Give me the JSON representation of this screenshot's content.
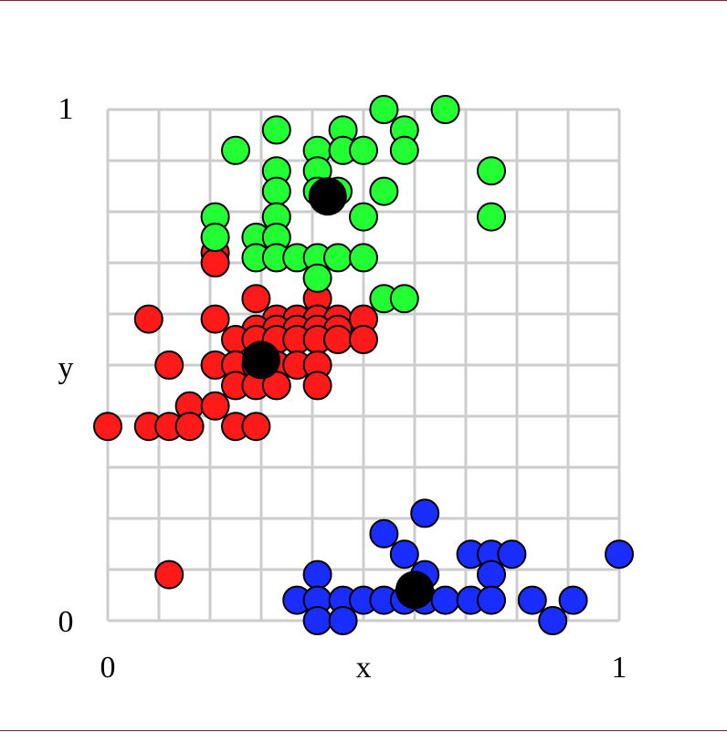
{
  "chart_data": {
    "type": "scatter",
    "title": "",
    "xlabel": "x",
    "ylabel": "y",
    "xlim": [
      0,
      1
    ],
    "ylim": [
      0,
      1
    ],
    "x_tick_labels": [
      "0",
      "1"
    ],
    "y_tick_labels": [
      "0",
      "1"
    ],
    "grid": true,
    "grid_step": 0.1,
    "legend": "none",
    "series": [
      {
        "color": "#ff1a1a",
        "points": [
          [
            0.21,
            0.72
          ],
          [
            0.21,
            0.7
          ],
          [
            0.29,
            0.63
          ],
          [
            0.41,
            0.63
          ],
          [
            0.21,
            0.59
          ],
          [
            0.08,
            0.59
          ],
          [
            0.33,
            0.59
          ],
          [
            0.37,
            0.59
          ],
          [
            0.41,
            0.59
          ],
          [
            0.45,
            0.59
          ],
          [
            0.5,
            0.59
          ],
          [
            0.29,
            0.57
          ],
          [
            0.33,
            0.57
          ],
          [
            0.37,
            0.57
          ],
          [
            0.41,
            0.57
          ],
          [
            0.45,
            0.57
          ],
          [
            0.25,
            0.55
          ],
          [
            0.29,
            0.55
          ],
          [
            0.33,
            0.55
          ],
          [
            0.37,
            0.55
          ],
          [
            0.41,
            0.55
          ],
          [
            0.45,
            0.55
          ],
          [
            0.5,
            0.55
          ],
          [
            0.12,
            0.5
          ],
          [
            0.21,
            0.5
          ],
          [
            0.25,
            0.5
          ],
          [
            0.29,
            0.5
          ],
          [
            0.33,
            0.5
          ],
          [
            0.37,
            0.5
          ],
          [
            0.41,
            0.5
          ],
          [
            0.25,
            0.46
          ],
          [
            0.29,
            0.46
          ],
          [
            0.33,
            0.46
          ],
          [
            0.41,
            0.46
          ],
          [
            0.16,
            0.42
          ],
          [
            0.21,
            0.42
          ],
          [
            0.0,
            0.38
          ],
          [
            0.08,
            0.38
          ],
          [
            0.12,
            0.38
          ],
          [
            0.16,
            0.38
          ],
          [
            0.25,
            0.38
          ],
          [
            0.29,
            0.38
          ],
          [
            0.12,
            0.09
          ]
        ]
      },
      {
        "color": "#22ff33",
        "points": [
          [
            0.54,
            1.0
          ],
          [
            0.66,
            1.0
          ],
          [
            0.33,
            0.96
          ],
          [
            0.46,
            0.96
          ],
          [
            0.58,
            0.96
          ],
          [
            0.25,
            0.92
          ],
          [
            0.41,
            0.92
          ],
          [
            0.46,
            0.92
          ],
          [
            0.5,
            0.92
          ],
          [
            0.58,
            0.92
          ],
          [
            0.33,
            0.88
          ],
          [
            0.41,
            0.88
          ],
          [
            0.75,
            0.88
          ],
          [
            0.33,
            0.84
          ],
          [
            0.41,
            0.84
          ],
          [
            0.45,
            0.84
          ],
          [
            0.54,
            0.84
          ],
          [
            0.21,
            0.79
          ],
          [
            0.33,
            0.79
          ],
          [
            0.5,
            0.79
          ],
          [
            0.75,
            0.79
          ],
          [
            0.21,
            0.75
          ],
          [
            0.29,
            0.75
          ],
          [
            0.33,
            0.75
          ],
          [
            0.29,
            0.71
          ],
          [
            0.33,
            0.71
          ],
          [
            0.37,
            0.71
          ],
          [
            0.41,
            0.71
          ],
          [
            0.45,
            0.71
          ],
          [
            0.5,
            0.71
          ],
          [
            0.41,
            0.67
          ],
          [
            0.54,
            0.63
          ],
          [
            0.58,
            0.63
          ]
        ]
      },
      {
        "color": "#1a2dff",
        "points": [
          [
            0.62,
            0.21
          ],
          [
            0.54,
            0.17
          ],
          [
            0.58,
            0.13
          ],
          [
            0.71,
            0.13
          ],
          [
            0.75,
            0.13
          ],
          [
            0.79,
            0.13
          ],
          [
            1.0,
            0.13
          ],
          [
            0.41,
            0.09
          ],
          [
            0.62,
            0.09
          ],
          [
            0.75,
            0.09
          ],
          [
            0.37,
            0.04
          ],
          [
            0.41,
            0.04
          ],
          [
            0.46,
            0.04
          ],
          [
            0.5,
            0.04
          ],
          [
            0.54,
            0.04
          ],
          [
            0.58,
            0.04
          ],
          [
            0.62,
            0.04
          ],
          [
            0.66,
            0.04
          ],
          [
            0.71,
            0.04
          ],
          [
            0.75,
            0.04
          ],
          [
            0.83,
            0.04
          ],
          [
            0.91,
            0.04
          ],
          [
            0.41,
            0.0
          ],
          [
            0.46,
            0.0
          ],
          [
            0.87,
            0.0
          ]
        ]
      }
    ],
    "centroids": {
      "color": "#000000",
      "points": [
        [
          0.43,
          0.83
        ],
        [
          0.3,
          0.51
        ],
        [
          0.6,
          0.06
        ]
      ]
    }
  }
}
